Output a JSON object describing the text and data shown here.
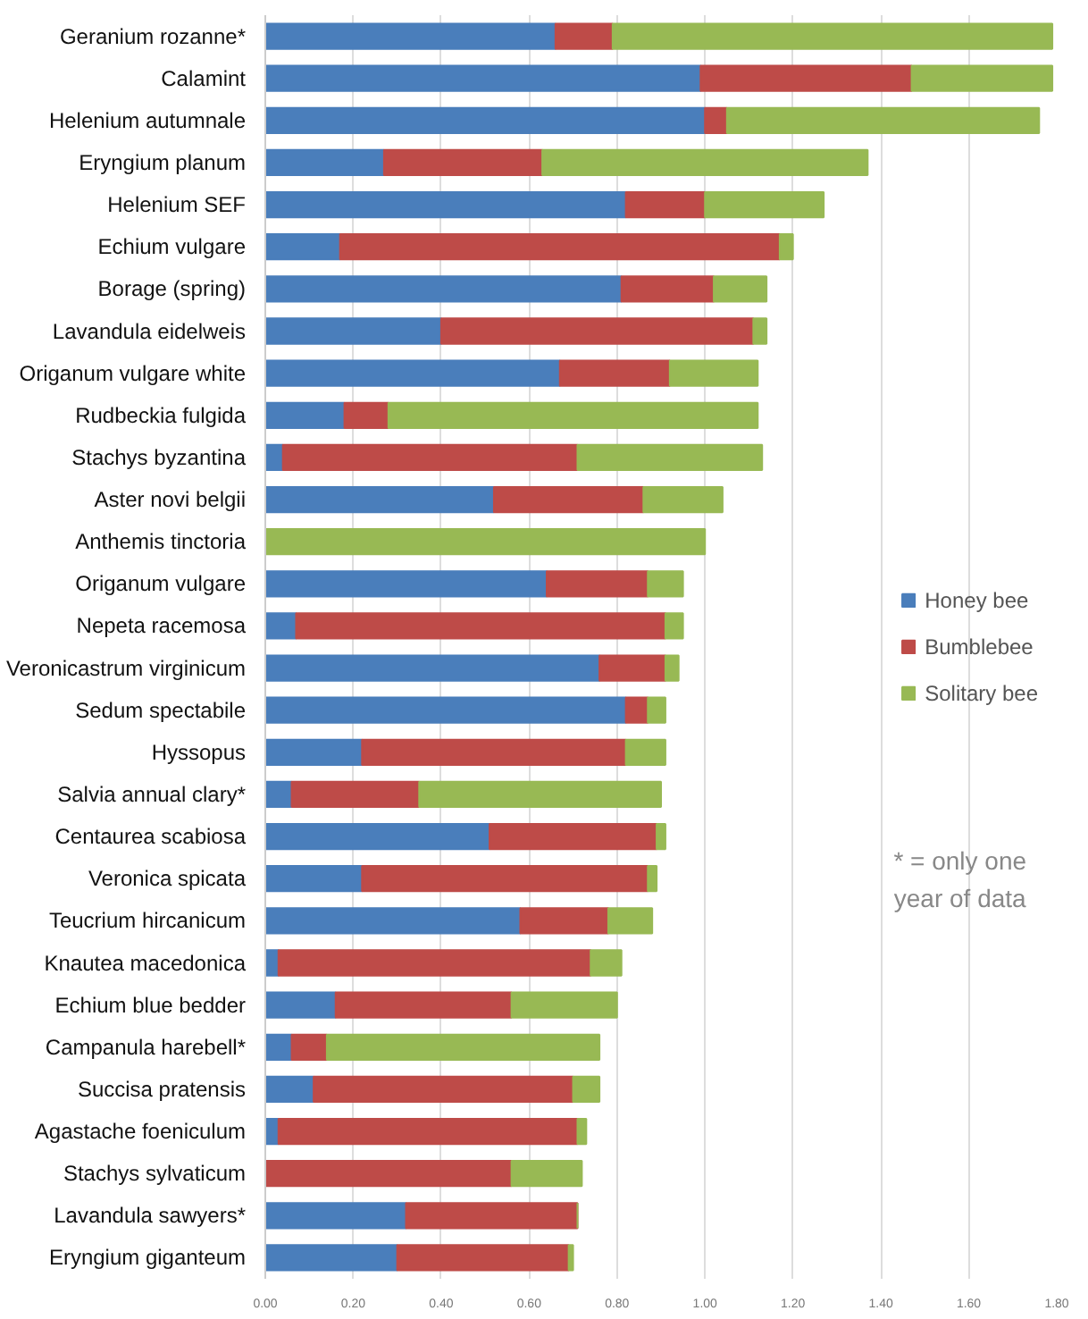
{
  "chart_data": {
    "type": "bar",
    "orientation": "horizontal",
    "stacked": true,
    "categories": [
      "Geranium rozanne*",
      "Calamint",
      "Helenium autumnale",
      "Eryngium planum",
      "Helenium SEF",
      "Echium vulgare",
      "Borage (spring)",
      "Lavandula eidelweis",
      "Origanum vulgare white",
      "Rudbeckia fulgida",
      "Stachys byzantina",
      "Aster novi belgii",
      "Anthemis tinctoria",
      "Origanum vulgare",
      "Nepeta racemosa",
      "Veronicastrum virginicum",
      "Sedum spectabile",
      "Hyssopus",
      "Salvia annual clary*",
      "Centaurea scabiosa",
      "Veronica spicata",
      "Teucrium hircanicum",
      "Knautea macedonica",
      "Echium blue bedder",
      "Campanula harebell*",
      "Succisa pratensis",
      "Agastache foeniculum",
      "Stachys sylvaticum",
      "Lavandula sawyers*",
      "Eryngium giganteum"
    ],
    "series": [
      {
        "name": "Honey bee",
        "color": "#4a7ebb",
        "values": [
          0.66,
          0.99,
          1.0,
          0.27,
          0.82,
          0.17,
          0.81,
          0.4,
          0.67,
          0.18,
          0.04,
          0.52,
          0,
          0.64,
          0.07,
          0.76,
          0.82,
          0.22,
          0.06,
          0.51,
          0.22,
          0.58,
          0.03,
          0.16,
          0.06,
          0.11,
          0.03,
          0,
          0.32,
          0.3
        ]
      },
      {
        "name": "Bumblebee",
        "color": "#be4b48",
        "values": [
          0.13,
          0.48,
          0.05,
          0.36,
          0.18,
          1.0,
          0.21,
          0.71,
          0.25,
          0.1,
          0.67,
          0.34,
          0,
          0.23,
          0.84,
          0.15,
          0.05,
          0.6,
          0.29,
          0.38,
          0.65,
          0.2,
          0.71,
          0.4,
          0.08,
          0.59,
          0.68,
          0.56,
          0.39,
          0.39
        ]
      },
      {
        "name": "Solitary bee",
        "color": "#98b954",
        "values": [
          1.0,
          0.32,
          0.71,
          0.74,
          0.27,
          0.03,
          0.12,
          0.03,
          0.2,
          0.84,
          0.42,
          0.18,
          1.0,
          0.08,
          0.04,
          0.03,
          0.04,
          0.09,
          0.55,
          0.02,
          0.02,
          0.1,
          0.07,
          0.24,
          0.62,
          0.06,
          0.02,
          0.16,
          0,
          0.01
        ]
      }
    ],
    "xlim": [
      0,
      1.8
    ],
    "xticks": [
      {
        "value": 0,
        "label": "0.00"
      },
      {
        "value": 0.2,
        "label": "0.20"
      },
      {
        "value": 0.4,
        "label": "0.40"
      },
      {
        "value": 0.6,
        "label": "0.60"
      },
      {
        "value": 0.8,
        "label": "0.80"
      },
      {
        "value": 1.0,
        "label": "1.00"
      },
      {
        "value": 1.2,
        "label": "1.20"
      },
      {
        "value": 1.4,
        "label": "1.40"
      },
      {
        "value": 1.6,
        "label": "1.60"
      },
      {
        "value": 1.8,
        "label": "1.80"
      }
    ],
    "grid": "x",
    "legend": "right",
    "annotations": [
      "* = only one year of data"
    ]
  }
}
